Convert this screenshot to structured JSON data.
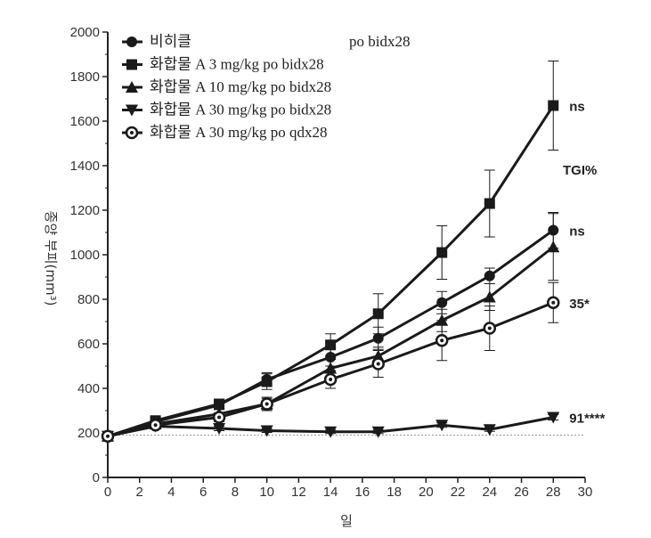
{
  "chart_data": {
    "type": "line",
    "xlabel": "일",
    "ylabel": "종양 부피(mm³)",
    "xlim": [
      0,
      30
    ],
    "ylim": [
      0,
      2000
    ],
    "xticks": [
      0,
      2,
      4,
      6,
      8,
      10,
      12,
      14,
      16,
      18,
      20,
      22,
      24,
      26,
      28,
      30
    ],
    "yticks": [
      0,
      200,
      400,
      600,
      800,
      1000,
      1200,
      1400,
      1600,
      1800,
      2000
    ],
    "grid": false,
    "legend_position": "top-left",
    "legend_header": "po bidx28",
    "reference_line": 190,
    "annotation_header": "TGI%",
    "x": [
      0,
      3,
      7,
      10,
      14,
      17,
      21,
      24,
      28
    ],
    "series": [
      {
        "name": "비히클",
        "marker": "filled-circle",
        "values": [
          185,
          250,
          325,
          440,
          540,
          625,
          785,
          905,
          1110
        ],
        "errors": [
          10,
          15,
          20,
          30,
          40,
          50,
          50,
          35,
          80
        ],
        "annotation": "ns"
      },
      {
        "name": "화합물 A 3 mg/kg po bidx28",
        "marker": "filled-square",
        "values": [
          185,
          255,
          330,
          430,
          595,
          735,
          1010,
          1230,
          1670
        ],
        "errors": [
          10,
          15,
          20,
          35,
          50,
          90,
          120,
          150,
          200
        ],
        "annotation": "ns"
      },
      {
        "name": "화합물 A 10 mg/kg po bidx28",
        "marker": "filled-triangle-up",
        "values": [
          185,
          240,
          285,
          330,
          490,
          545,
          705,
          810,
          1035
        ],
        "errors": [
          10,
          15,
          20,
          30,
          40,
          40,
          50,
          60,
          150
        ],
        "annotation": ""
      },
      {
        "name": "화합물 A 30 mg/kg po bidx28",
        "marker": "filled-triangle-down",
        "values": [
          185,
          230,
          220,
          210,
          205,
          205,
          235,
          215,
          270
        ],
        "errors": [
          5,
          10,
          10,
          8,
          8,
          8,
          10,
          8,
          12
        ],
        "annotation": "91****"
      },
      {
        "name": "화합물 A 30 mg/kg po qdx28",
        "marker": "open-circle",
        "values": [
          185,
          235,
          270,
          330,
          440,
          510,
          615,
          670,
          785
        ],
        "errors": [
          10,
          15,
          20,
          25,
          40,
          60,
          90,
          100,
          90
        ],
        "annotation": "35*"
      }
    ],
    "colors": {
      "line": "#1a1a1a",
      "axis": "#222222",
      "reference": "#999999"
    }
  }
}
